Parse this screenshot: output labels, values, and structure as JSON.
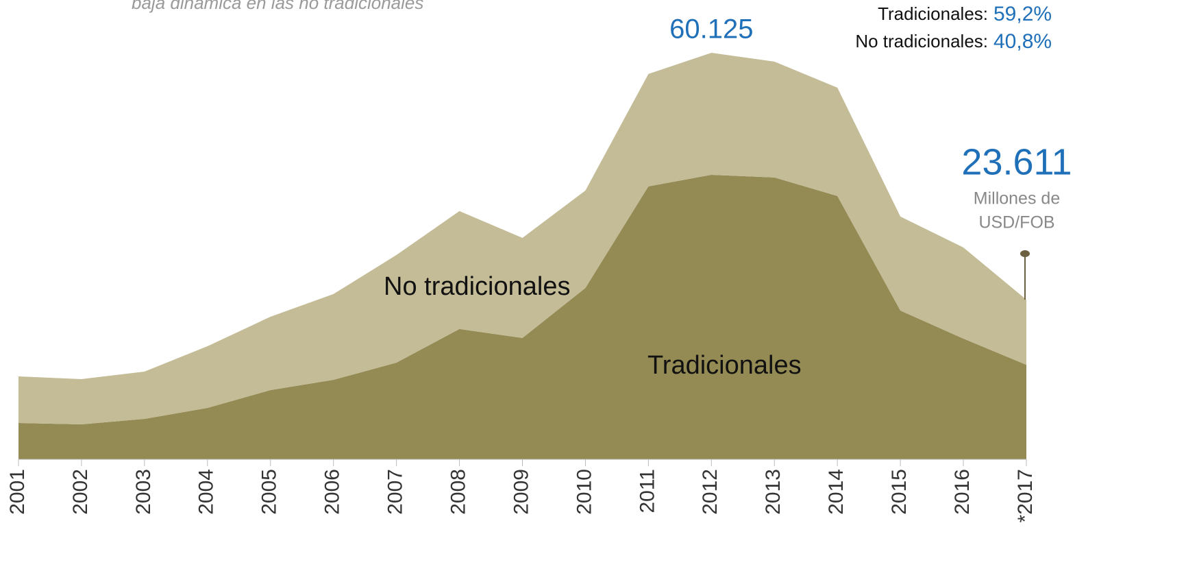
{
  "chart_data": {
    "type": "stacked_area",
    "subtitle": "baja dinámica en las no tradicionales",
    "categories": [
      "2001",
      "2002",
      "2003",
      "2004",
      "2005",
      "2006",
      "2007",
      "2008",
      "2009",
      "2010",
      "2011",
      "2012",
      "2013",
      "2014",
      "2015",
      "2016",
      "*2017"
    ],
    "series": [
      {
        "name": "Tradicionales",
        "color": "#948a54",
        "values": [
          5370,
          5170,
          5980,
          7600,
          10240,
          11760,
          14300,
          19270,
          17950,
          25350,
          40360,
          42080,
          41680,
          38940,
          22000,
          17850,
          13978
        ]
      },
      {
        "name": "No tradicionales",
        "color": "#c4bc97",
        "values": [
          6900,
          6690,
          7000,
          9130,
          10850,
          12680,
          15920,
          17440,
          14800,
          14400,
          16630,
          18045,
          17140,
          16020,
          13900,
          13480,
          9633
        ]
      }
    ],
    "ylim": [
      0,
      66000
    ],
    "annotations": [
      {
        "text": "60.125",
        "value": 60125,
        "index": 11
      },
      {
        "text": "23.611",
        "value": 23611,
        "index": 16,
        "note_lines": [
          "Millones de",
          "USD/FOB"
        ]
      }
    ],
    "shares": [
      {
        "label": "Tradicionales:",
        "value": 59.2,
        "value_label": "59,2%"
      },
      {
        "label": "No tradicionales:",
        "value": 40.8,
        "value_label": "40,8%"
      }
    ]
  }
}
